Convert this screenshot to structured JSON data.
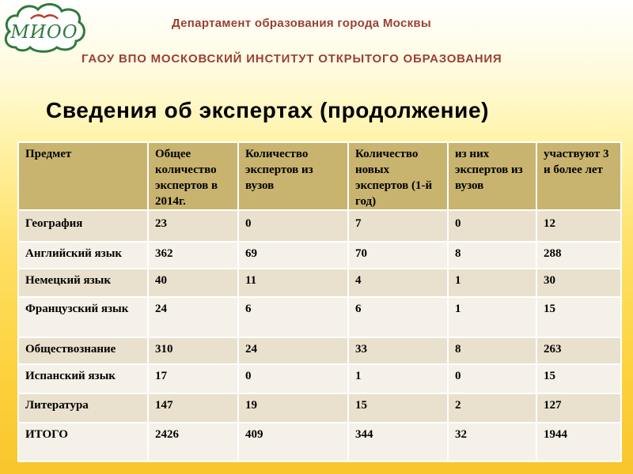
{
  "logo": {
    "text": "МИОО",
    "icon": "open-book-icon",
    "accent": "#2e7a3a",
    "book_color": "#c0392b"
  },
  "header": {
    "department": "Департамент образования города Москвы",
    "institute": "ГАОУ ВПО МОСКОВСКИЙ ИНСТИТУТ ОТКРЫТОГО ОБРАЗОВАНИЯ",
    "title_color": "#9a3f33"
  },
  "title": "Сведения об экспертах (продолжение)",
  "table": {
    "header_color": "#c8b46e",
    "columns": [
      "Предмет",
      "Общее количество экспертов в 2014г.",
      "Количество экспертов из вузов",
      "Количество новых экспертов (1-й год)",
      "из них экспертов из вузов",
      "участвуют 3 и более лет"
    ],
    "rows": [
      [
        "География",
        "23",
        "0",
        "7",
        "0",
        "12"
      ],
      [
        "Английский язык",
        "362",
        "69",
        "70",
        "8",
        "288"
      ],
      [
        "Немецкий язык",
        "40",
        "11",
        "4",
        "1",
        "30"
      ],
      [
        "Французский язык",
        "24",
        "6",
        "6",
        "1",
        "15"
      ],
      [
        "Обществознание",
        "310",
        "24",
        "33",
        "8",
        "263"
      ],
      [
        "Испанский язык",
        "17",
        "0",
        "1",
        "0",
        "15"
      ],
      [
        "Литература",
        "147",
        "19",
        "15",
        "2",
        "127"
      ],
      [
        "ИТОГО",
        "2426",
        "409",
        "344",
        "32",
        "1944"
      ]
    ]
  }
}
